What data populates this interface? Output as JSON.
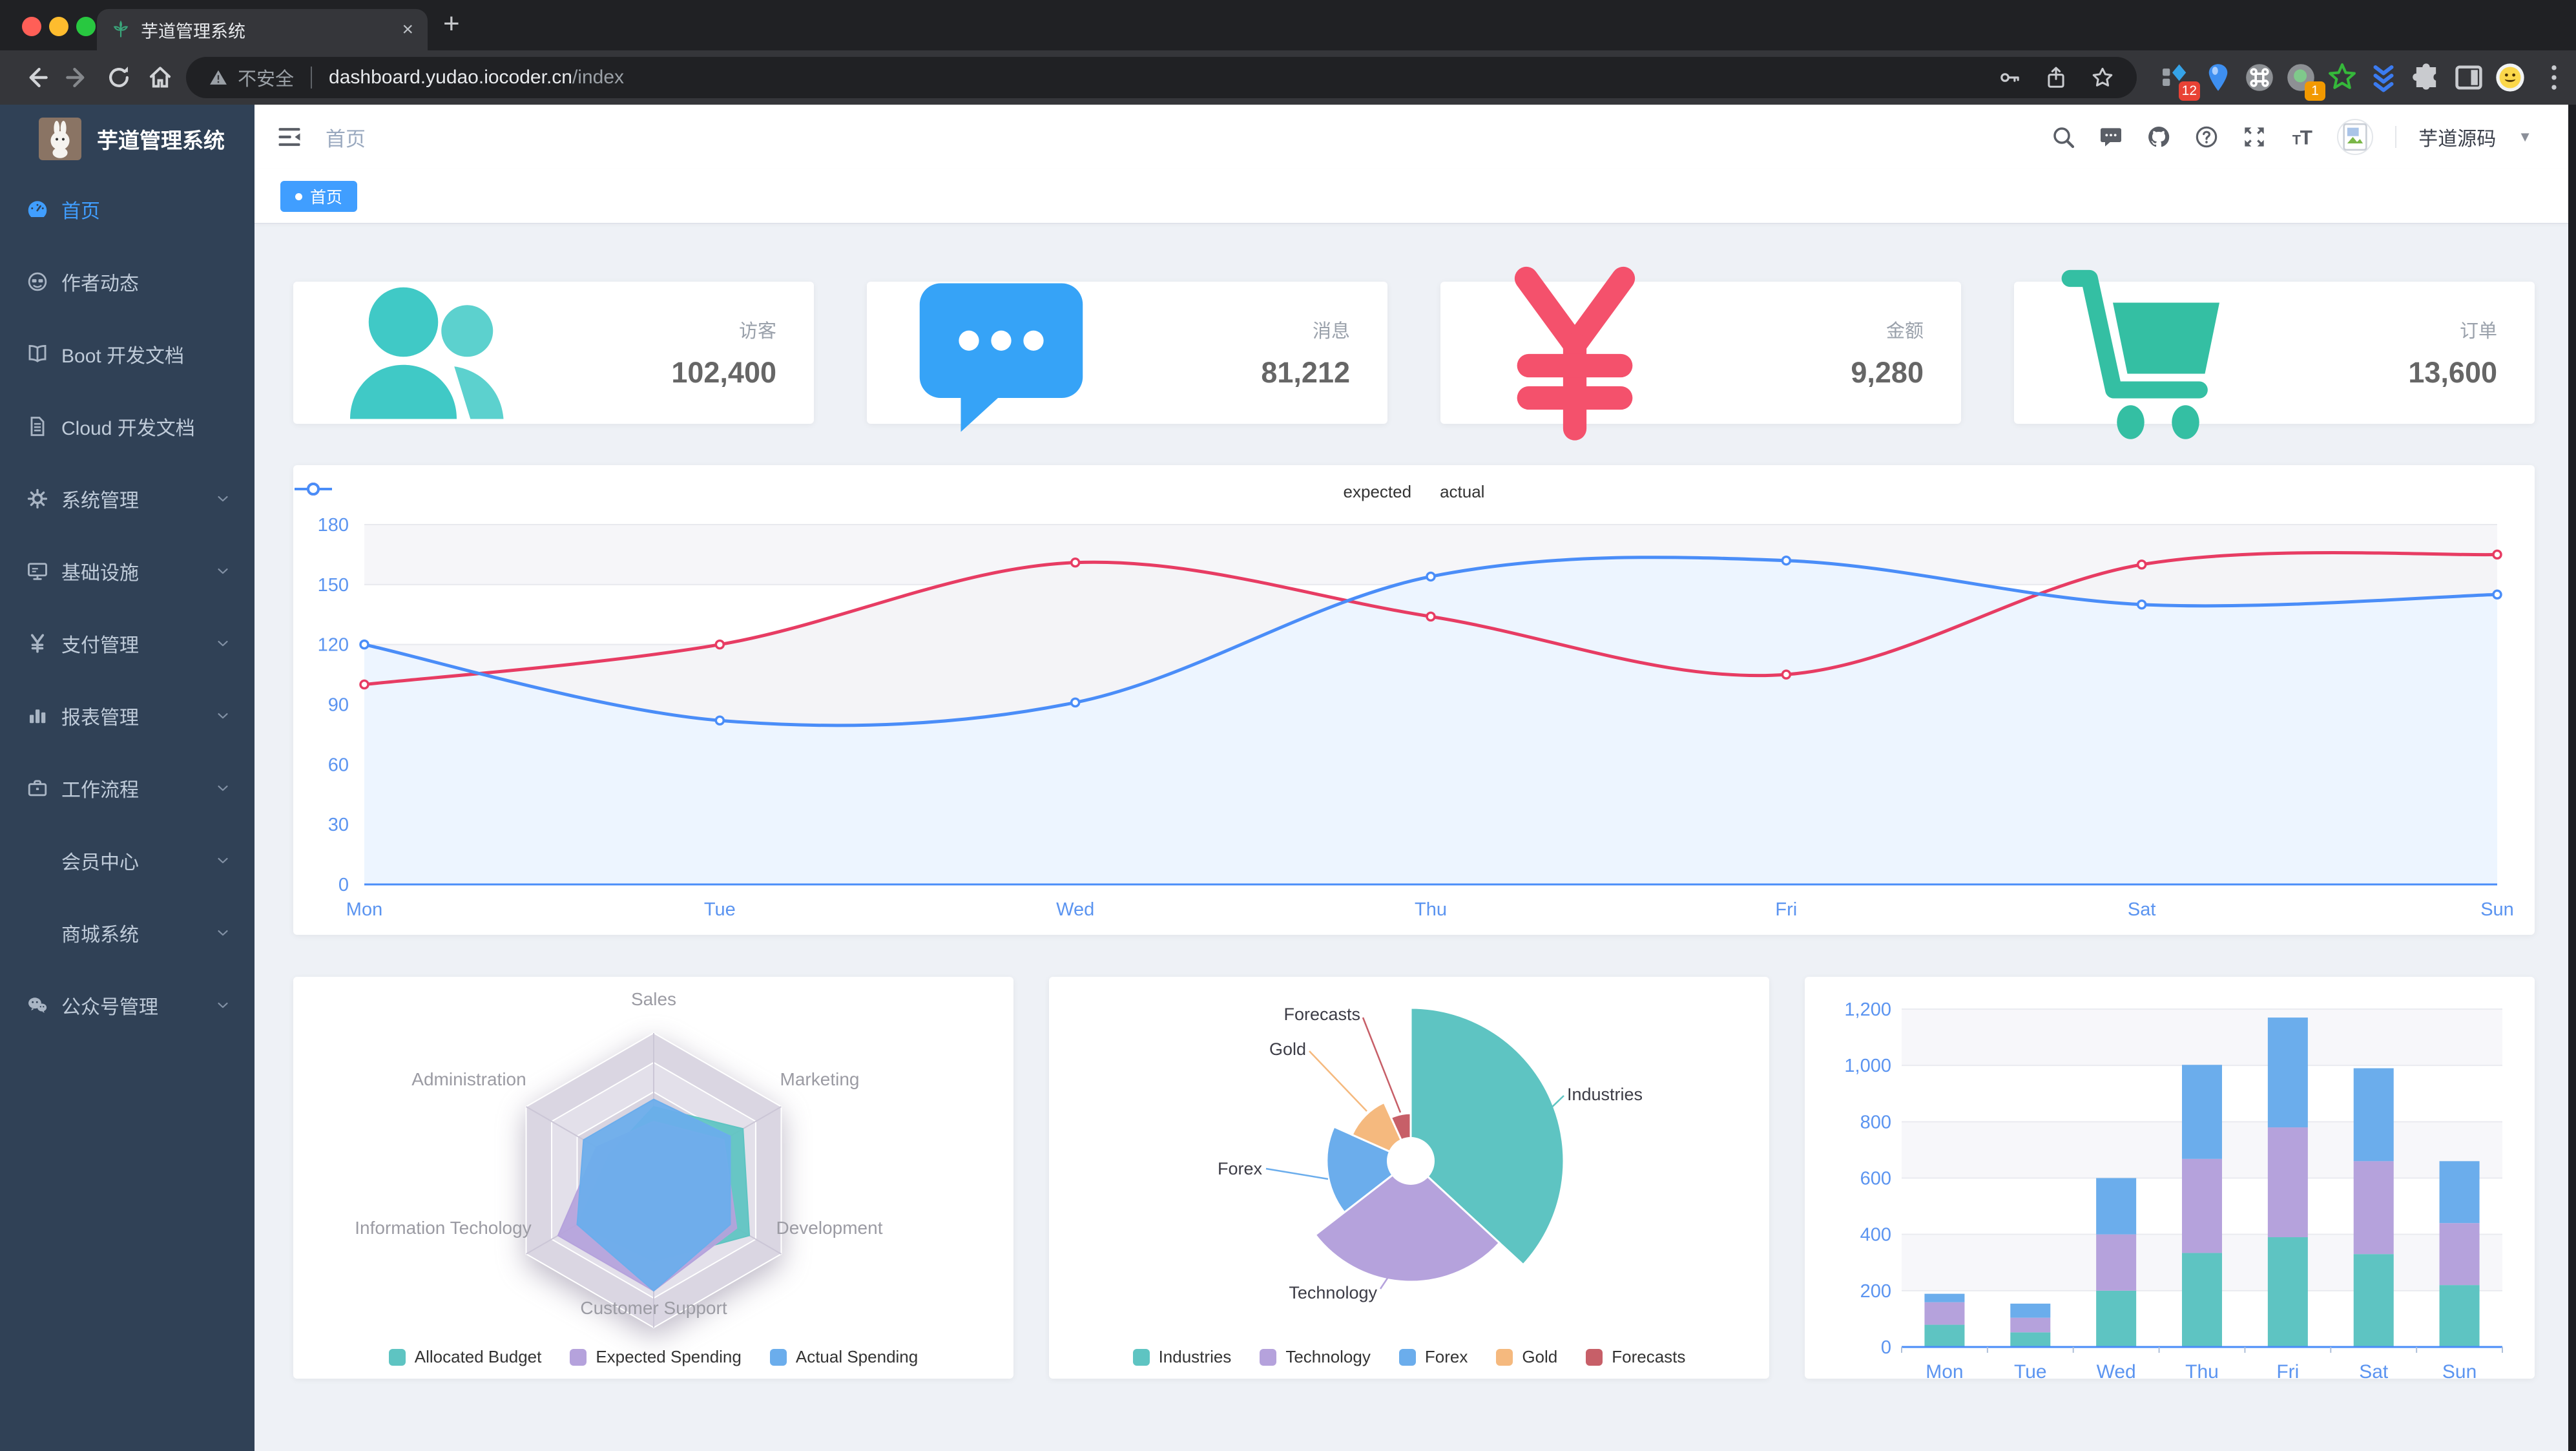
{
  "browser": {
    "tab_title": "芋道管理系统",
    "close_tab_label": "×",
    "new_tab_label": "+",
    "security_label": "不安全",
    "url_host": "dashboard.yudao.iocoder.cn",
    "url_path": "/index",
    "ext_badge_12": "12",
    "ext_badge_1": "1"
  },
  "sidebar": {
    "logo_title": "芋道管理系统",
    "items": [
      {
        "label": "首页",
        "icon": "dashboard",
        "active": true,
        "arrow": false
      },
      {
        "label": "作者动态",
        "icon": "people",
        "active": false,
        "arrow": false
      },
      {
        "label": "Boot 开发文档",
        "icon": "book",
        "active": false,
        "arrow": false
      },
      {
        "label": "Cloud 开发文档",
        "icon": "document",
        "active": false,
        "arrow": false
      },
      {
        "label": "系统管理",
        "icon": "gear",
        "active": false,
        "arrow": true
      },
      {
        "label": "基础设施",
        "icon": "monitor",
        "active": false,
        "arrow": true
      },
      {
        "label": "支付管理",
        "icon": "yen",
        "active": false,
        "arrow": true
      },
      {
        "label": "报表管理",
        "icon": "chart",
        "active": false,
        "arrow": true
      },
      {
        "label": "工作流程",
        "icon": "briefcase",
        "active": false,
        "arrow": true
      },
      {
        "label": "会员中心",
        "icon": "",
        "active": false,
        "arrow": true
      },
      {
        "label": "商城系统",
        "icon": "",
        "active": false,
        "arrow": true
      },
      {
        "label": "公众号管理",
        "icon": "wechat",
        "active": false,
        "arrow": true
      }
    ]
  },
  "navbar": {
    "breadcrumb": "首页",
    "username": "芋道源码"
  },
  "tags": {
    "active": "首页"
  },
  "stats": [
    {
      "label": "访客",
      "value": "102,400",
      "icon": "stat-people",
      "color": "#40c9c6"
    },
    {
      "label": "消息",
      "value": "81,212",
      "icon": "stat-message",
      "color": "#36a3f7"
    },
    {
      "label": "金额",
      "value": "9,280",
      "icon": "stat-money",
      "color": "#f4516c"
    },
    {
      "label": "订单",
      "value": "13,600",
      "icon": "stat-cart",
      "color": "#34bfa3"
    }
  ],
  "chart_data": [
    {
      "type": "line",
      "x": [
        "Mon",
        "Tue",
        "Wed",
        "Thu",
        "Fri",
        "Sat",
        "Sun"
      ],
      "series": [
        {
          "name": "expected",
          "color": "#e73c63",
          "values": [
            100,
            120,
            161,
            134,
            105,
            160,
            165
          ]
        },
        {
          "name": "actual",
          "color": "#4a8df8",
          "values": [
            120,
            82,
            91,
            154,
            162,
            140,
            145
          ]
        }
      ],
      "ylim": [
        0,
        180
      ],
      "yticks": [
        0,
        30,
        60,
        90,
        120,
        150,
        180
      ],
      "legend_position": "top",
      "grid": true
    },
    {
      "type": "radar",
      "indicators": [
        {
          "name": "Sales",
          "max": 10000
        },
        {
          "name": "Marketing",
          "max": 20000
        },
        {
          "name": "Development",
          "max": 20000
        },
        {
          "name": "Customer Support",
          "max": 20000
        },
        {
          "name": "Information Techology",
          "max": 20000
        },
        {
          "name": "Administration",
          "max": 20000
        }
      ],
      "series": [
        {
          "name": "Allocated Budget",
          "color": "#5ec4c2",
          "values": [
            5000,
            14000,
            15000,
            11000,
            12000,
            7000
          ]
        },
        {
          "name": "Expected Spending",
          "color": "#b5a2dc",
          "values": [
            4000,
            11000,
            13000,
            15000,
            15000,
            9000
          ]
        },
        {
          "name": "Actual Spending",
          "color": "#6badec",
          "values": [
            5500,
            12000,
            12000,
            15000,
            12000,
            11000
          ]
        }
      ],
      "legend_position": "bottom"
    },
    {
      "type": "pie",
      "rose": true,
      "items": [
        {
          "name": "Industries",
          "value": 320,
          "color": "#5ec4c2"
        },
        {
          "name": "Technology",
          "value": 240,
          "color": "#b5a2dc"
        },
        {
          "name": "Forex",
          "value": 149,
          "color": "#6badec"
        },
        {
          "name": "Gold",
          "value": 100,
          "color": "#f5b97e"
        },
        {
          "name": "Forecasts",
          "value": 59,
          "color": "#c75f68"
        }
      ],
      "legend_position": "bottom"
    },
    {
      "type": "bar",
      "stacked": true,
      "categories": [
        "Mon",
        "Tue",
        "Wed",
        "Thu",
        "Fri",
        "Sat",
        "Sun"
      ],
      "series": [
        {
          "name": "",
          "color": "#5ec4c2",
          "values": [
            79,
            52,
            200,
            334,
            390,
            330,
            220
          ]
        },
        {
          "name": "",
          "color": "#b5a2dc",
          "values": [
            80,
            52,
            200,
            334,
            390,
            330,
            220
          ]
        },
        {
          "name": "",
          "color": "#6badec",
          "values": [
            30,
            50,
            200,
            334,
            390,
            330,
            220
          ]
        }
      ],
      "ylim": [
        0,
        1200
      ],
      "ytick_labels": [
        "0",
        "200",
        "400",
        "600",
        "800",
        "1,000",
        "1,200"
      ],
      "grid": true
    }
  ]
}
